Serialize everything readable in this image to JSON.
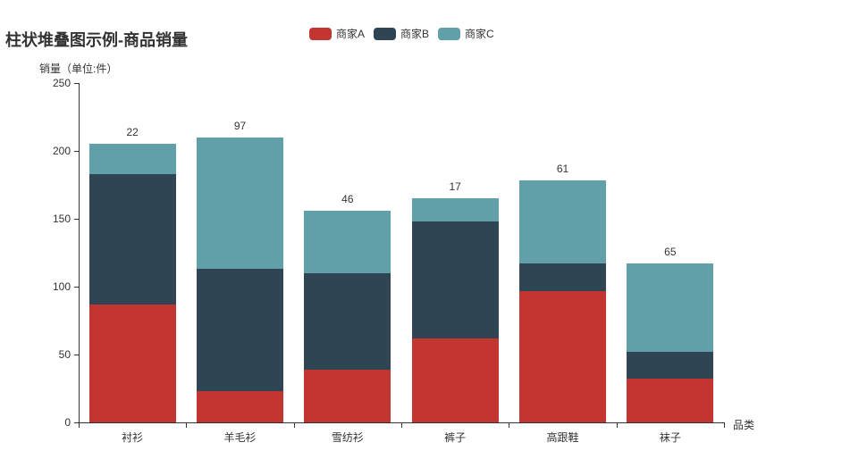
{
  "title": "柱状堆叠图示例-商品销量",
  "legend": {
    "items": [
      {
        "label": "商家A",
        "color": "#c23531"
      },
      {
        "label": "商家B",
        "color": "#2f4554"
      },
      {
        "label": "商家C",
        "color": "#61a0a8"
      }
    ]
  },
  "y_axis": {
    "name": "销量（单位:件）"
  },
  "x_axis": {
    "name": "品类"
  },
  "chart_data": {
    "type": "bar",
    "stacked": true,
    "title": "柱状堆叠图示例-商品销量",
    "categories": [
      "衬衫",
      "羊毛衫",
      "雪纺衫",
      "裤子",
      "高跟鞋",
      "袜子"
    ],
    "series": [
      {
        "name": "商家A",
        "color": "#c23531",
        "values": [
          87,
          23,
          39,
          62,
          97,
          32
        ],
        "labels_visible": false
      },
      {
        "name": "商家B",
        "color": "#2f4554",
        "values": [
          96,
          90,
          71,
          86,
          20,
          20
        ],
        "labels_visible": false
      },
      {
        "name": "商家C",
        "color": "#61a0a8",
        "values": [
          22,
          97,
          46,
          17,
          61,
          65
        ],
        "labels_visible": true
      }
    ],
    "stack_totals": [
      205,
      210,
      156,
      165,
      178,
      117
    ],
    "xlabel": "品类",
    "ylabel": "销量（单位:件）",
    "ylim": [
      0,
      250
    ],
    "yticks": [
      0,
      50,
      100,
      150,
      200,
      250
    ],
    "grid": false,
    "legend_position": "top-center",
    "background": "#ffffff",
    "axis_color": "#333333",
    "label_color": "#333333"
  }
}
